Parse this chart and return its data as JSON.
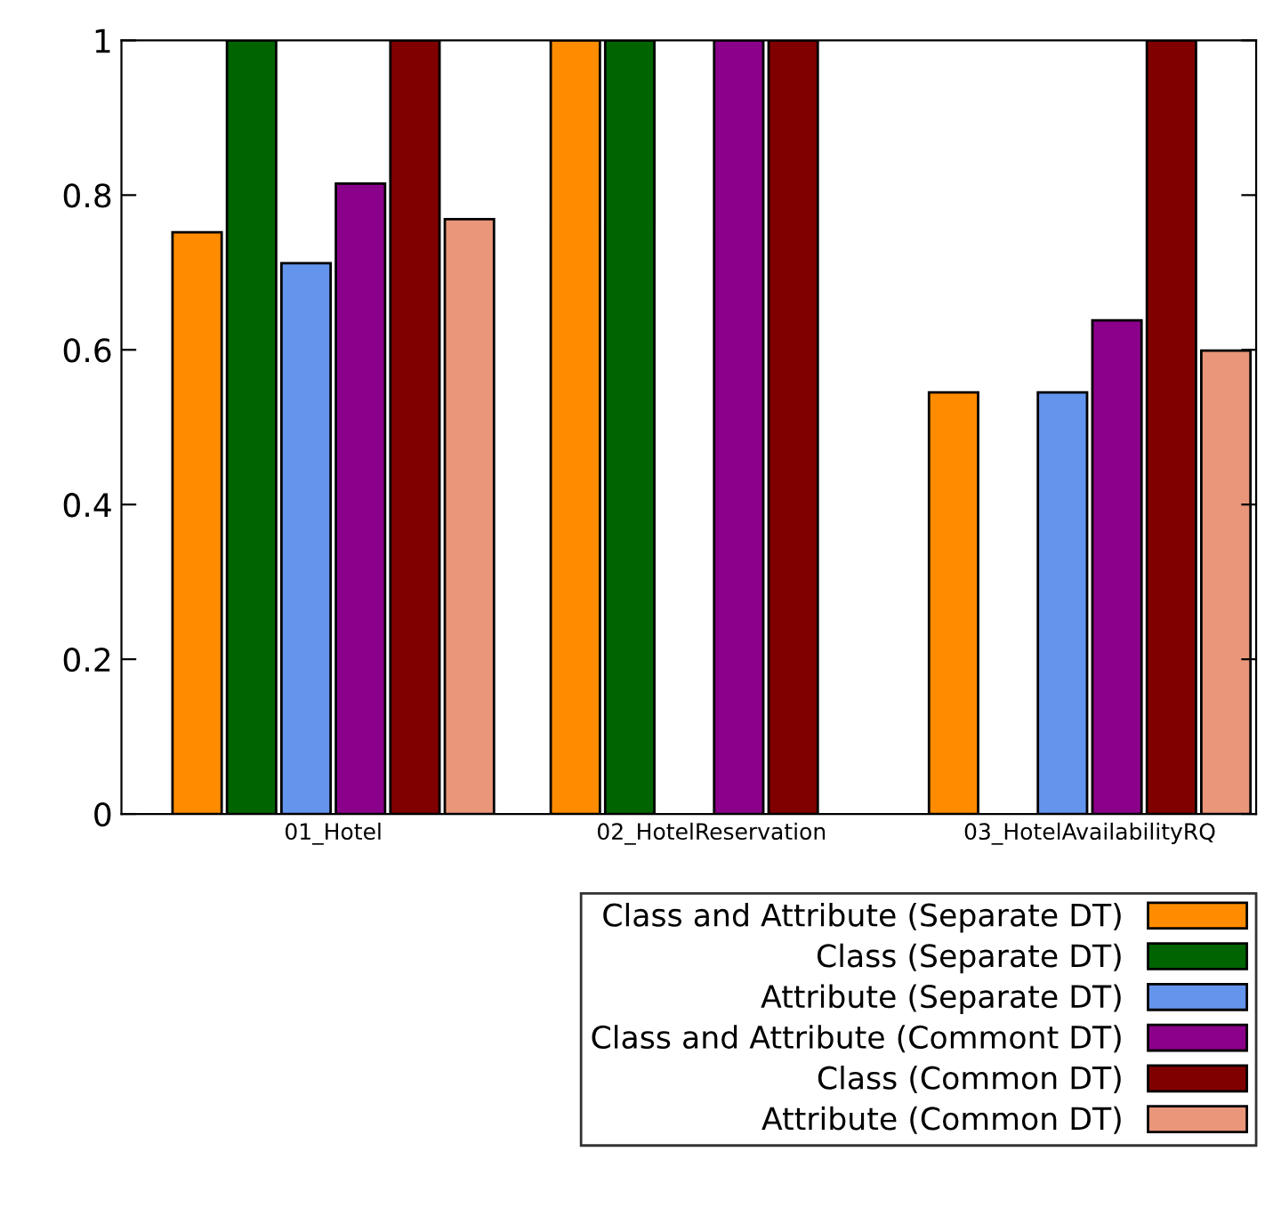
{
  "chart_data": {
    "type": "bar",
    "categories": [
      "01_Hotel",
      "02_HotelReservation",
      "03_HotelAvailabilityRQ"
    ],
    "series": [
      {
        "name": "Class and Attribute (Separate DT)",
        "color": "#ff8c00",
        "values": [
          0.752,
          1,
          0.545
        ]
      },
      {
        "name": "Class (Separate DT)",
        "color": "#006400",
        "values": [
          1,
          1,
          null
        ]
      },
      {
        "name": "Attribute (Separate DT)",
        "color": "#6495ed",
        "values": [
          0.712,
          null,
          0.545
        ]
      },
      {
        "name": "Class and Attribute (Commont DT)",
        "color": "#8b008b",
        "values": [
          0.815,
          1,
          0.638
        ]
      },
      {
        "name": "Class (Common DT)",
        "color": "#800000",
        "values": [
          1,
          1,
          1
        ]
      },
      {
        "name": "Attribute (Common DT)",
        "color": "#e9967a",
        "values": [
          0.769,
          null,
          0.599
        ]
      }
    ],
    "ylim": [
      0,
      1
    ],
    "yticks": [
      0,
      0.2,
      0.4,
      0.6,
      0.8,
      1
    ],
    "grid": false,
    "legend": "bottom"
  }
}
